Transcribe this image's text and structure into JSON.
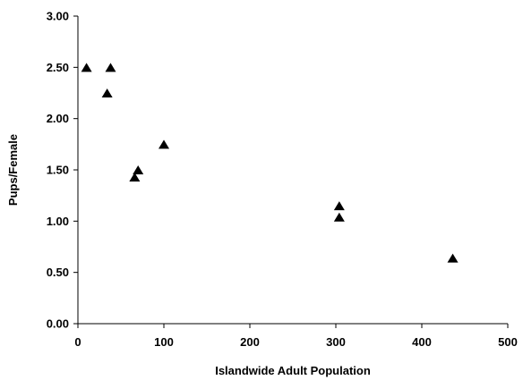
{
  "chart_data": {
    "type": "scatter",
    "title": "",
    "xlabel": "Islandwide Adult Population",
    "ylabel": "Pups/Female",
    "xlim": [
      0,
      500
    ],
    "ylim": [
      0,
      3
    ],
    "x_ticks": [
      {
        "value": 0,
        "label": "0"
      },
      {
        "value": 100,
        "label": "100"
      },
      {
        "value": 200,
        "label": "200"
      },
      {
        "value": 300,
        "label": "300"
      },
      {
        "value": 400,
        "label": "400"
      },
      {
        "value": 500,
        "label": "500"
      }
    ],
    "y_ticks": [
      {
        "value": 0,
        "label": "0.00"
      },
      {
        "value": 0.5,
        "label": "0.50"
      },
      {
        "value": 1.0,
        "label": "1.00"
      },
      {
        "value": 1.5,
        "label": "1.50"
      },
      {
        "value": 2.0,
        "label": "2.00"
      },
      {
        "value": 2.5,
        "label": "2.50"
      },
      {
        "value": 3.0,
        "label": "3.00"
      }
    ],
    "grid": false,
    "marker": "triangle",
    "marker_color": "#000000",
    "series": [
      {
        "points": [
          {
            "x": 10,
            "y": 2.5
          },
          {
            "x": 38,
            "y": 2.5
          },
          {
            "x": 34,
            "y": 2.25
          },
          {
            "x": 66,
            "y": 1.43
          },
          {
            "x": 70,
            "y": 1.5
          },
          {
            "x": 100,
            "y": 1.75
          },
          {
            "x": 304,
            "y": 1.15
          },
          {
            "x": 304,
            "y": 1.04
          },
          {
            "x": 436,
            "y": 0.64
          }
        ]
      }
    ]
  }
}
